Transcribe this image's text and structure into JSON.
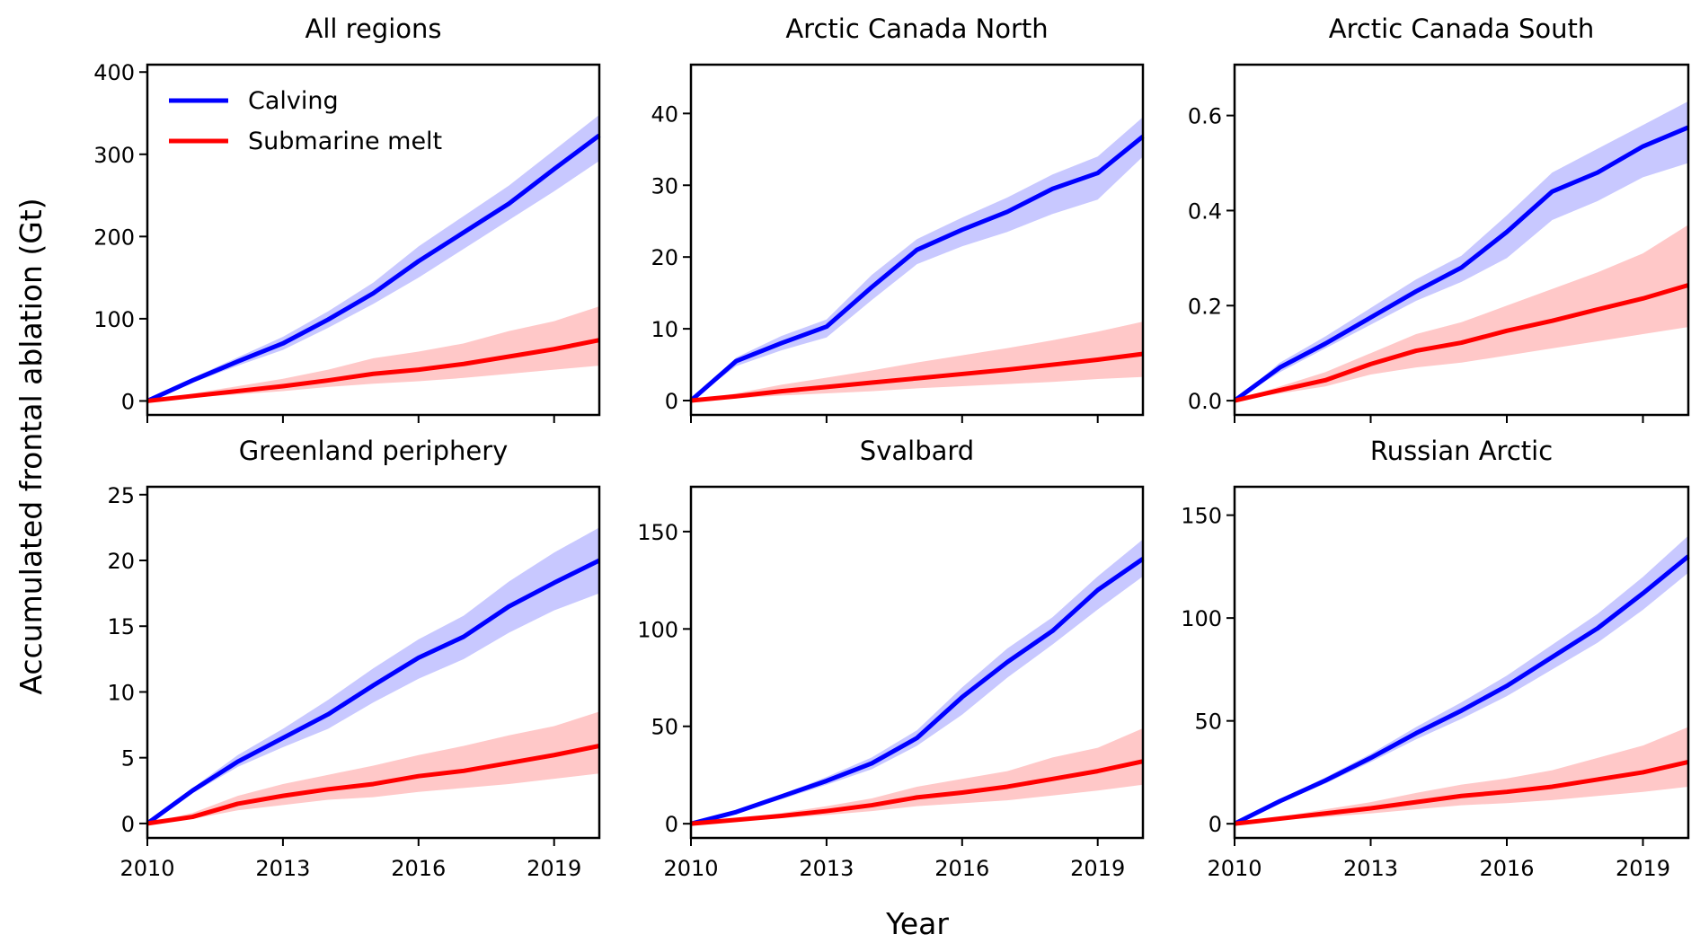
{
  "chart_data": {
    "type": "line",
    "ylabel": "Accumulated frontal ablation (Gt)",
    "xlabel": "Year",
    "x": [
      2010,
      2011,
      2012,
      2013,
      2014,
      2015,
      2016,
      2017,
      2018,
      2019,
      2020
    ],
    "xticks": [
      2010,
      2013,
      2016,
      2019
    ],
    "xlim": [
      2010,
      2020
    ],
    "grid": false,
    "legend": {
      "placement": "upper-left",
      "panel": 0,
      "entries": [
        {
          "name": "Calving",
          "color": "#0000ff"
        },
        {
          "name": "Submarine melt",
          "color": "#ff0000"
        }
      ]
    },
    "colors": {
      "calving": "#0000ff",
      "calving_band": "#c8c8ff",
      "melt": "#ff0000",
      "melt_band": "#ffc8c8"
    },
    "panels": [
      {
        "title": "All regions",
        "ylim": [
          -17,
          409
        ],
        "yticks": [
          0,
          100,
          200,
          300,
          400
        ],
        "tick_decimals": 0,
        "series": [
          {
            "name": "Calving",
            "values": [
              0,
              25,
              48,
              70,
              99,
              131,
              170,
              205,
              240,
              282,
              323
            ],
            "lower": [
              0,
              22,
              43,
              62,
              89,
              118,
              150,
              185,
              220,
              255,
              292
            ],
            "upper": [
              0,
              28,
              53,
              78,
              109,
              144,
              188,
              225,
              262,
              305,
              348
            ]
          },
          {
            "name": "Submarine melt",
            "values": [
              0,
              6,
              12,
              18,
              25,
              33,
              38,
              45,
              54,
              63,
              74
            ],
            "lower": [
              0,
              4,
              8,
              12,
              17,
              21,
              24,
              28,
              33,
              38,
              43
            ],
            "upper": [
              0,
              9,
              18,
              27,
              38,
              52,
              60,
              70,
              85,
              97,
              115
            ]
          }
        ]
      },
      {
        "title": "Arctic Canada North",
        "ylim": [
          -2,
          46.8
        ],
        "yticks": [
          0,
          10,
          20,
          30,
          40
        ],
        "tick_decimals": 0,
        "series": [
          {
            "name": "Calving",
            "values": [
              0,
              5.5,
              8,
              10.3,
              15.8,
              21,
              23.8,
              26.3,
              29.5,
              31.7,
              36.8
            ],
            "lower": [
              0,
              4.8,
              7,
              8.8,
              14,
              19,
              21.5,
              23.5,
              26,
              28,
              34
            ],
            "upper": [
              0,
              6,
              9,
              11.3,
              17.5,
              22.5,
              25.5,
              28.3,
              31.5,
              34,
              39.5
            ]
          },
          {
            "name": "Submarine melt",
            "values": [
              0,
              0.6,
              1.3,
              1.9,
              2.5,
              3.1,
              3.7,
              4.3,
              5,
              5.7,
              6.5
            ],
            "lower": [
              0,
              0.3,
              0.7,
              1,
              1.3,
              1.7,
              2,
              2.3,
              2.6,
              3,
              3.3
            ],
            "upper": [
              0,
              1,
              2.2,
              3.2,
              4.2,
              5.3,
              6.3,
              7.3,
              8.4,
              9.6,
              11
            ]
          }
        ]
      },
      {
        "title": "Arctic Canada South",
        "ylim": [
          -0.03,
          0.707
        ],
        "yticks": [
          0,
          0.2,
          0.4,
          0.6
        ],
        "tick_decimals": 1,
        "series": [
          {
            "name": "Calving",
            "values": [
              0,
              0.07,
              0.12,
              0.175,
              0.23,
              0.28,
              0.355,
              0.44,
              0.48,
              0.535,
              0.575
            ],
            "lower": [
              0,
              0.06,
              0.11,
              0.16,
              0.21,
              0.25,
              0.3,
              0.38,
              0.42,
              0.47,
              0.5
            ],
            "upper": [
              0,
              0.08,
              0.135,
              0.195,
              0.255,
              0.305,
              0.39,
              0.48,
              0.53,
              0.58,
              0.63
            ]
          },
          {
            "name": "Submarine melt",
            "values": [
              0,
              0.022,
              0.043,
              0.077,
              0.105,
              0.122,
              0.147,
              0.168,
              0.192,
              0.215,
              0.243
            ],
            "lower": [
              0,
              0.015,
              0.03,
              0.055,
              0.07,
              0.08,
              0.095,
              0.11,
              0.125,
              0.14,
              0.155
            ],
            "upper": [
              0,
              0.03,
              0.06,
              0.1,
              0.14,
              0.165,
              0.2,
              0.235,
              0.27,
              0.31,
              0.37
            ]
          }
        ]
      },
      {
        "title": "Greenland periphery",
        "ylim": [
          -1.1,
          25.6
        ],
        "yticks": [
          0,
          5,
          10,
          15,
          20,
          25
        ],
        "tick_decimals": 0,
        "series": [
          {
            "name": "Calving",
            "values": [
              0,
              2.5,
              4.7,
              6.5,
              8.3,
              10.5,
              12.6,
              14.2,
              16.5,
              18.3,
              20
            ],
            "lower": [
              0,
              2.3,
              4.3,
              5.8,
              7.2,
              9.2,
              11,
              12.5,
              14.5,
              16.2,
              17.5
            ],
            "upper": [
              0,
              2.7,
              5.2,
              7.2,
              9.4,
              11.8,
              14,
              15.8,
              18.4,
              20.6,
              22.5
            ]
          },
          {
            "name": "Submarine melt",
            "values": [
              0,
              0.5,
              1.5,
              2.1,
              2.6,
              3,
              3.6,
              4,
              4.6,
              5.2,
              5.9
            ],
            "lower": [
              0,
              0.35,
              1,
              1.4,
              1.8,
              2,
              2.4,
              2.7,
              3,
              3.4,
              3.8
            ],
            "upper": [
              0,
              0.8,
              2.1,
              3,
              3.7,
              4.4,
              5.2,
              5.9,
              6.7,
              7.4,
              8.5
            ]
          }
        ]
      },
      {
        "title": "Svalbard",
        "ylim": [
          -7.3,
          173
        ],
        "yticks": [
          0,
          50,
          100,
          150
        ],
        "tick_decimals": 0,
        "series": [
          {
            "name": "Calving",
            "values": [
              0,
              6,
              14,
              22,
              31,
              44,
              65,
              83,
              99,
              120,
              136
            ],
            "lower": [
              0,
              5.5,
              12.5,
              20,
              28,
              40,
              56,
              75,
              92,
              110,
              127
            ],
            "upper": [
              0,
              6.5,
              15,
              24,
              34,
              48,
              70,
              90,
              106,
              127,
              146
            ]
          },
          {
            "name": "Submarine melt",
            "values": [
              0,
              2,
              4,
              6.5,
              9.5,
              13.5,
              16,
              19,
              23,
              27,
              32
            ],
            "lower": [
              0,
              1.5,
              2.8,
              4.5,
              6.5,
              9,
              10.5,
              12,
              14.5,
              17,
              20
            ],
            "upper": [
              0,
              2.5,
              5.5,
              9,
              13,
              19,
              23,
              27,
              34,
              39,
              49
            ]
          }
        ]
      },
      {
        "title": "Russian Arctic",
        "ylim": [
          -6.9,
          163.8
        ],
        "yticks": [
          0,
          50,
          100,
          150
        ],
        "tick_decimals": 0,
        "series": [
          {
            "name": "Calving",
            "values": [
              0,
              11,
              21,
              32,
              44,
              55,
              67,
              81,
              95,
              112,
              130
            ],
            "lower": [
              0,
              10,
              19.5,
              30,
              41,
              51,
              62,
              75,
              88,
              104,
              122
            ],
            "upper": [
              0,
              12,
              22.5,
              34,
              47,
              59,
              72,
              87,
              102,
              120,
              140
            ]
          },
          {
            "name": "Submarine melt",
            "values": [
              0,
              2.5,
              5,
              7.5,
              10.5,
              13.5,
              15.5,
              18,
              21.5,
              25,
              30
            ],
            "lower": [
              0,
              1.7,
              3.3,
              5,
              7,
              9,
              10,
              11.5,
              13.5,
              15.5,
              18
            ],
            "upper": [
              0,
              3.3,
              7,
              10.5,
              15,
              19,
              22,
              26,
              32,
              38,
              47
            ]
          }
        ]
      }
    ]
  }
}
